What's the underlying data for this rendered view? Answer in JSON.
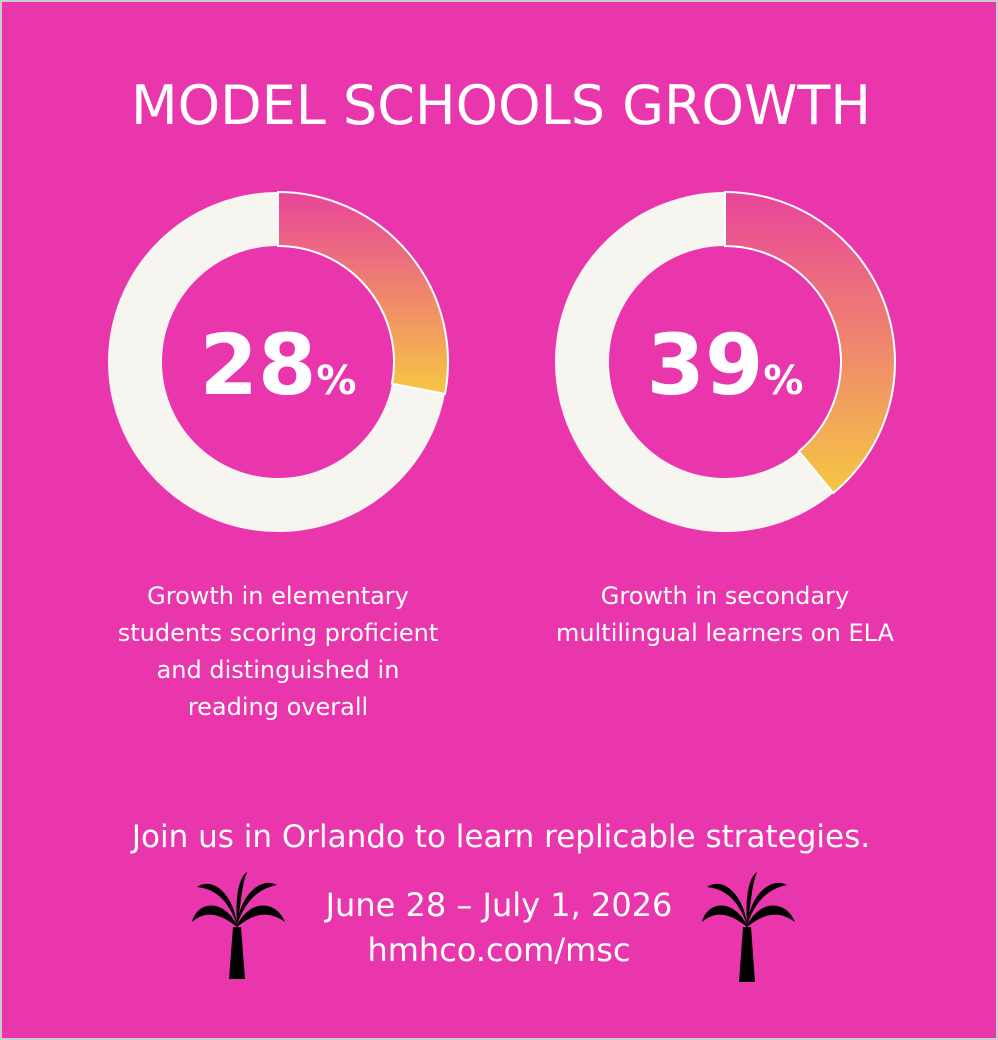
{
  "title": "MODEL SCHOOLS GROWTH",
  "chart_data": [
    {
      "type": "donut",
      "values": [
        28
      ],
      "value_labels": [
        "28%"
      ],
      "colors": [
        "#e8449a",
        "#f6c743"
      ],
      "track_color": "#f7f5f0",
      "caption": "Growth in elementary students scoring proficient and distinguished in reading overall"
    },
    {
      "type": "donut",
      "values": [
        39
      ],
      "value_labels": [
        "39%"
      ],
      "colors": [
        "#e8449a",
        "#f6c743"
      ],
      "track_color": "#f7f5f0",
      "caption": "Growth in secondary multilingual learners on ELA"
    }
  ],
  "footer": {
    "tagline": "Join us in Orlando to learn replicable strategies.",
    "dates": "June 28 – July 1, 2026",
    "url": "hmhco.com/msc"
  }
}
